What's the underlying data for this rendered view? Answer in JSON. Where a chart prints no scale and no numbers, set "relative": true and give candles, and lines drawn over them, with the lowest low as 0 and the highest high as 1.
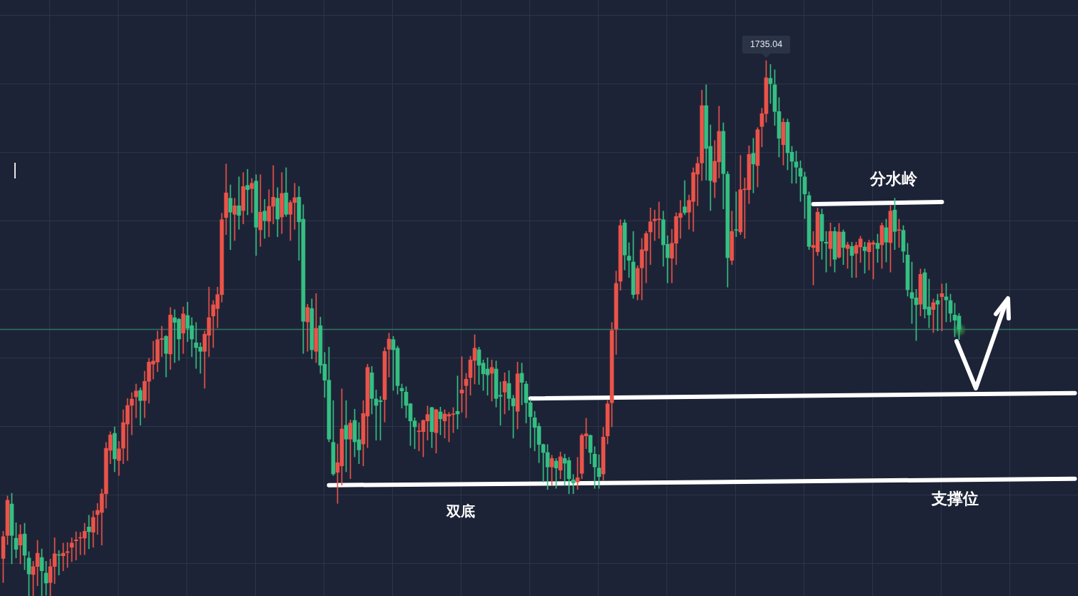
{
  "chart_data": {
    "type": "candlestick",
    "relative": true,
    "grid": true,
    "categories": [
      null,
      null,
      null,
      null,
      null,
      null,
      null,
      null,
      null,
      null,
      null,
      null,
      null,
      null,
      null,
      null,
      null,
      null,
      null,
      null,
      null,
      null,
      null,
      null,
      null,
      null,
      null,
      null,
      null,
      null,
      null,
      null,
      null,
      null,
      null,
      null,
      null,
      null,
      null,
      null,
      null,
      null,
      null,
      null,
      null,
      null,
      null,
      null,
      null,
      null,
      null,
      null,
      null,
      null,
      null,
      null,
      null,
      null,
      null,
      null,
      null,
      null,
      null,
      null,
      null,
      null,
      null,
      null,
      null,
      null,
      null,
      null,
      null,
      null,
      null,
      null,
      null,
      null,
      null,
      null,
      null,
      null,
      null,
      null,
      null,
      null,
      null,
      null,
      null,
      null,
      null,
      null,
      null,
      null,
      null,
      null,
      null,
      null,
      null,
      null,
      null,
      null,
      null,
      null,
      null,
      null,
      null,
      null,
      null,
      null,
      null,
      null,
      null,
      null,
      null,
      null,
      null,
      null,
      null,
      null,
      null,
      null,
      null,
      null,
      null,
      null,
      null,
      null,
      null,
      null,
      null,
      null,
      null,
      null,
      null,
      null,
      null,
      null,
      null,
      null,
      null,
      null,
      null,
      null,
      null,
      null,
      null,
      null,
      null,
      null,
      null,
      null,
      null,
      null,
      null,
      null,
      null,
      null,
      null,
      null,
      null,
      null,
      null,
      null,
      null,
      null,
      null,
      null,
      null,
      null,
      null,
      null,
      null,
      null,
      null,
      null,
      null,
      null,
      null,
      null,
      null,
      null,
      null,
      null,
      null,
      null,
      null,
      null,
      null,
      null,
      null,
      null,
      null,
      null,
      null,
      null,
      null,
      null,
      null,
      null,
      null,
      null,
      null,
      null,
      null,
      null,
      null,
      null,
      null,
      null,
      null,
      null,
      null,
      null,
      null,
      null,
      null,
      null,
      null,
      null,
      null,
      null,
      null,
      null,
      null,
      null,
      null,
      null,
      null,
      null,
      null,
      null,
      null,
      null,
      null,
      null,
      null,
      null,
      null,
      null,
      null,
      null,
      null,
      null,
      null,
      null,
      null,
      null,
      null,
      null,
      null
    ],
    "ohlc": [
      [
        0.07,
        0.121,
        0.025,
        0.111
      ],
      [
        0.113,
        0.187,
        0.096,
        0.179
      ],
      [
        0.172,
        0.192,
        0.06,
        0.113
      ],
      [
        0.108,
        0.137,
        0.071,
        0.087
      ],
      [
        0.095,
        0.133,
        0.06,
        0.115
      ],
      [
        0.116,
        0.136,
        0.049,
        0.076
      ],
      [
        0.071,
        0.083,
        0,
        0.041
      ],
      [
        0.04,
        0.065,
        0,
        0.055
      ],
      [
        0.055,
        0.104,
        0.019,
        0.08
      ],
      [
        0.072,
        0.088,
        0,
        0.047
      ],
      [
        0.043,
        0.065,
        0.001,
        0.024
      ],
      [
        0.025,
        0.069,
        0,
        0.055
      ],
      [
        0.055,
        0.109,
        0.023,
        0.079
      ],
      [
        0.077,
        0.085,
        0.039,
        0.076
      ],
      [
        0.075,
        0.099,
        0.047,
        0.08
      ],
      [
        0.081,
        0.1,
        0.053,
        0.083
      ],
      [
        0.091,
        0.109,
        0.064,
        0.099
      ],
      [
        0.103,
        0.12,
        0.067,
        0.105
      ],
      [
        0.108,
        0.119,
        0.077,
        0.109
      ],
      [
        0.108,
        0.136,
        0.077,
        0.121
      ],
      [
        0.129,
        0.151,
        0.088,
        0.12
      ],
      [
        0.119,
        0.159,
        0.091,
        0.147
      ],
      [
        0.152,
        0.173,
        0.115,
        0.16
      ],
      [
        0.156,
        0.2,
        0.095,
        0.191
      ],
      [
        0.191,
        0.287,
        0.164,
        0.276
      ],
      [
        0.272,
        0.307,
        0.247,
        0.301
      ],
      [
        0.304,
        0.316,
        0.232,
        0.256
      ],
      [
        0.253,
        0.289,
        0.225,
        0.275
      ],
      [
        0.276,
        0.348,
        0.247,
        0.324
      ],
      [
        0.321,
        0.369,
        0.253,
        0.356
      ],
      [
        0.356,
        0.38,
        0.301,
        0.368
      ],
      [
        0.372,
        0.396,
        0.333,
        0.383
      ],
      [
        0.384,
        0.389,
        0.319,
        0.365
      ],
      [
        0.365,
        0.42,
        0.333,
        0.401
      ],
      [
        0.401,
        0.444,
        0.36,
        0.437
      ],
      [
        0.433,
        0.476,
        0.405,
        0.439
      ],
      [
        0.437,
        0.495,
        0.419,
        0.479
      ],
      [
        0.479,
        0.504,
        0.447,
        0.481
      ],
      [
        0.485,
        0.487,
        0.409,
        0.453
      ],
      [
        0.452,
        0.539,
        0.423,
        0.525
      ],
      [
        0.52,
        0.535,
        0.436,
        0.511
      ],
      [
        0.517,
        0.519,
        0.44,
        0.48
      ],
      [
        0.491,
        0.54,
        0.453,
        0.527
      ],
      [
        0.524,
        0.549,
        0.475,
        0.5
      ],
      [
        0.505,
        0.52,
        0.447,
        0.48
      ],
      [
        0.473,
        0.511,
        0.425,
        0.464
      ],
      [
        0.465,
        0.473,
        0.416,
        0.457
      ],
      [
        0.457,
        0.495,
        0.388,
        0.489
      ],
      [
        0.487,
        0.577,
        0.447,
        0.52
      ],
      [
        0.523,
        0.552,
        0.464,
        0.544
      ],
      [
        0.537,
        0.577,
        0.501,
        0.563
      ],
      [
        0.563,
        0.715,
        0.549,
        0.703
      ],
      [
        0.707,
        0.807,
        0.675,
        0.753
      ],
      [
        0.743,
        0.768,
        0.647,
        0.717
      ],
      [
        0.713,
        0.743,
        0.664,
        0.729
      ],
      [
        0.729,
        0.783,
        0.685,
        0.711
      ],
      [
        0.72,
        0.791,
        0.695,
        0.765
      ],
      [
        0.767,
        0.797,
        0.712,
        0.759
      ],
      [
        0.761,
        0.78,
        0.716,
        0.771
      ],
      [
        0.775,
        0.787,
        0.636,
        0.689
      ],
      [
        0.684,
        0.787,
        0.653,
        0.717
      ],
      [
        0.719,
        0.741,
        0.668,
        0.701
      ],
      [
        0.7,
        0.759,
        0.671,
        0.728
      ],
      [
        0.728,
        0.804,
        0.695,
        0.745
      ],
      [
        0.743,
        0.763,
        0.671,
        0.704
      ],
      [
        0.708,
        0.791,
        0.677,
        0.752
      ],
      [
        0.753,
        0.8,
        0.709,
        0.713
      ],
      [
        0.713,
        0.739,
        0.664,
        0.735
      ],
      [
        0.735,
        0.771,
        0.685,
        0.744
      ],
      [
        0.745,
        0.765,
        0.627,
        0.699
      ],
      [
        0.704,
        0.731,
        0.453,
        0.513
      ],
      [
        0.512,
        0.545,
        0.457,
        0.539
      ],
      [
        0.537,
        0.555,
        0.443,
        0.46
      ],
      [
        0.457,
        0.565,
        0.436,
        0.5
      ],
      [
        0.505,
        0.521,
        0.416,
        0.431
      ],
      [
        0.433,
        0.455,
        0.371,
        0.403
      ],
      [
        0.403,
        0.465,
        0.288,
        0.293
      ],
      [
        0.287,
        0.365,
        0.225,
        0.228
      ],
      [
        0.231,
        0.284,
        0.173,
        0.249
      ],
      [
        0.243,
        0.387,
        0.207,
        0.312
      ],
      [
        0.319,
        0.365,
        0.232,
        0.293
      ],
      [
        0.293,
        0.329,
        0.219,
        0.323
      ],
      [
        0.328,
        0.349,
        0.26,
        0.288
      ],
      [
        0.292,
        0.324,
        0.247,
        0.273
      ],
      [
        0.284,
        0.365,
        0.243,
        0.341
      ],
      [
        0.336,
        0.433,
        0.277,
        0.427
      ],
      [
        0.417,
        0.429,
        0.34,
        0.369
      ],
      [
        0.368,
        0.385,
        0.291,
        0.356
      ],
      [
        0.365,
        0.373,
        0.291,
        0.363
      ],
      [
        0.367,
        0.464,
        0.325,
        0.457
      ],
      [
        0.461,
        0.491,
        0.409,
        0.48
      ],
      [
        0.479,
        0.485,
        0.384,
        0.46
      ],
      [
        0.463,
        0.467,
        0.377,
        0.393
      ],
      [
        0.388,
        0.396,
        0.351,
        0.383
      ],
      [
        0.381,
        0.391,
        0.333,
        0.356
      ],
      [
        0.359,
        0.36,
        0.281,
        0.327
      ],
      [
        0.327,
        0.333,
        0.275,
        0.316
      ],
      [
        0.307,
        0.323,
        0.271,
        0.308
      ],
      [
        0.307,
        0.329,
        0.26,
        0.328
      ],
      [
        0.327,
        0.355,
        0.291,
        0.339
      ],
      [
        0.352,
        0.353,
        0.277,
        0.307
      ],
      [
        0.305,
        0.349,
        0.267,
        0.348
      ],
      [
        0.344,
        0.353,
        0.301,
        0.331
      ],
      [
        0.327,
        0.348,
        0.295,
        0.34
      ],
      [
        0.336,
        0.343,
        0.288,
        0.339
      ],
      [
        0.339,
        0.352,
        0.305,
        0.34
      ],
      [
        0.345,
        0.411,
        0.312,
        0.34
      ],
      [
        0.379,
        0.447,
        0.343,
        0.385
      ],
      [
        0.393,
        0.416,
        0.333,
        0.405
      ],
      [
        0.408,
        0.448,
        0.375,
        0.441
      ],
      [
        0.44,
        0.488,
        0.396,
        0.463
      ],
      [
        0.46,
        0.465,
        0.395,
        0.431
      ],
      [
        0.435,
        0.441,
        0.384,
        0.415
      ],
      [
        0.424,
        0.445,
        0.375,
        0.413
      ],
      [
        0.416,
        0.441,
        0.364,
        0.427
      ],
      [
        0.424,
        0.439,
        0.353,
        0.369
      ],
      [
        0.375,
        0.4,
        0.319,
        0.373
      ],
      [
        0.381,
        0.417,
        0.34,
        0.401
      ],
      [
        0.397,
        0.421,
        0.347,
        0.369
      ],
      [
        0.369,
        0.375,
        0.295,
        0.355
      ],
      [
        0.345,
        0.437,
        0.312,
        0.415
      ],
      [
        0.416,
        0.435,
        0.357,
        0.399
      ],
      [
        0.396,
        0.401,
        0.323,
        0.361
      ],
      [
        0.361,
        0.367,
        0.277,
        0.335
      ],
      [
        0.333,
        0.345,
        0.271,
        0.315
      ],
      [
        0.317,
        0.323,
        0.249,
        0.283
      ],
      [
        0.283,
        0.284,
        0.213,
        0.268
      ],
      [
        0.268,
        0.283,
        0.199,
        0.241
      ],
      [
        0.241,
        0.263,
        0.207,
        0.257
      ],
      [
        0.252,
        0.257,
        0.201,
        0.239
      ],
      [
        0.235,
        0.269,
        0.219,
        0.26
      ],
      [
        0.257,
        0.265,
        0.207,
        0.248
      ],
      [
        0.253,
        0.259,
        0.191,
        0.219
      ],
      [
        0.217,
        0.227,
        0.191,
        0.211
      ],
      [
        0.213,
        0.259,
        0.199,
        0.221
      ],
      [
        0.229,
        0.303,
        0.219,
        0.3
      ],
      [
        0.299,
        0.332,
        0.275,
        0.303
      ],
      [
        0.3,
        0.301,
        0.247,
        0.268
      ],
      [
        0.265,
        0.279,
        0.201,
        0.241
      ],
      [
        0.239,
        0.264,
        0.201,
        0.223
      ],
      [
        0.228,
        0.315,
        0.216,
        0.297
      ],
      [
        0.299,
        0.365,
        0.284,
        0.359
      ],
      [
        0.361,
        0.511,
        0.316,
        0.496
      ],
      [
        0.499,
        0.607,
        0.451,
        0.584
      ],
      [
        0.588,
        0.703,
        0.571,
        0.692
      ],
      [
        0.697,
        0.703,
        0.609,
        0.637
      ],
      [
        0.635,
        0.66,
        0.595,
        0.627
      ],
      [
        0.624,
        0.681,
        0.556,
        0.563
      ],
      [
        0.564,
        0.617,
        0.553,
        0.612
      ],
      [
        0.613,
        0.668,
        0.553,
        0.647
      ],
      [
        0.645,
        0.681,
        0.585,
        0.677
      ],
      [
        0.68,
        0.725,
        0.619,
        0.699
      ],
      [
        0.701,
        0.721,
        0.664,
        0.704
      ],
      [
        0.703,
        0.736,
        0.668,
        0.704
      ],
      [
        0.703,
        0.719,
        0.616,
        0.656
      ],
      [
        0.657,
        0.673,
        0.585,
        0.632
      ],
      [
        0.631,
        0.685,
        0.585,
        0.659
      ],
      [
        0.659,
        0.716,
        0.619,
        0.709
      ],
      [
        0.707,
        0.739,
        0.668,
        0.715
      ],
      [
        0.727,
        0.776,
        0.712,
        0.716
      ],
      [
        0.717,
        0.749,
        0.685,
        0.739
      ],
      [
        0.737,
        0.8,
        0.681,
        0.791
      ],
      [
        0.788,
        0.82,
        0.729,
        0.808
      ],
      [
        0.809,
        0.945,
        0.776,
        0.916
      ],
      [
        0.916,
        0.955,
        0.777,
        0.836
      ],
      [
        0.84,
        0.88,
        0.72,
        0.776
      ],
      [
        0.773,
        0.851,
        0.744,
        0.812
      ],
      [
        0.811,
        0.915,
        0.781,
        0.868
      ],
      [
        0.868,
        0.884,
        0.723,
        0.789
      ],
      [
        0.788,
        0.793,
        0.577,
        0.632
      ],
      [
        0.627,
        0.719,
        0.619,
        0.681
      ],
      [
        0.684,
        0.755,
        0.671,
        0.683
      ],
      [
        0.68,
        0.823,
        0.675,
        0.759
      ],
      [
        0.759,
        0.781,
        0.668,
        0.76
      ],
      [
        0.759,
        0.841,
        0.733,
        0.825
      ],
      [
        0.827,
        0.855,
        0.753,
        0.807
      ],
      [
        0.804,
        0.875,
        0.764,
        0.871
      ],
      [
        0.877,
        0.911,
        0.839,
        0.901
      ],
      [
        0.901,
        1,
        0.885,
        0.968
      ],
      [
        0.967,
        0.993,
        0.92,
        0.957
      ],
      [
        0.955,
        0.983,
        0.879,
        0.905
      ],
      [
        0.905,
        0.931,
        0.82,
        0.855
      ],
      [
        0.843,
        0.892,
        0.805,
        0.885
      ],
      [
        0.885,
        0.891,
        0.796,
        0.828
      ],
      [
        0.829,
        0.84,
        0.771,
        0.812
      ],
      [
        0.811,
        0.831,
        0.771,
        0.801
      ],
      [
        0.799,
        0.813,
        0.737,
        0.784
      ],
      [
        0.783,
        0.792,
        0.705,
        0.751
      ],
      [
        0.748,
        0.755,
        0.647,
        0.653
      ],
      [
        0.651,
        0.681,
        0.581,
        0.655
      ],
      [
        0.643,
        0.725,
        0.636,
        0.717
      ],
      [
        0.713,
        0.723,
        0.629,
        0.663
      ],
      [
        0.661,
        0.681,
        0.605,
        0.659
      ],
      [
        0.649,
        0.697,
        0.616,
        0.681
      ],
      [
        0.681,
        0.689,
        0.605,
        0.629
      ],
      [
        0.633,
        0.696,
        0.631,
        0.68
      ],
      [
        0.68,
        0.684,
        0.619,
        0.651
      ],
      [
        0.649,
        0.661,
        0.612,
        0.656
      ],
      [
        0.653,
        0.661,
        0.595,
        0.636
      ],
      [
        0.64,
        0.661,
        0.595,
        0.655
      ],
      [
        0.652,
        0.672,
        0.623,
        0.667
      ],
      [
        0.652,
        0.661,
        0.603,
        0.645
      ],
      [
        0.643,
        0.665,
        0.609,
        0.66
      ],
      [
        0.657,
        0.664,
        0.592,
        0.66
      ],
      [
        0.659,
        0.676,
        0.623,
        0.649
      ],
      [
        0.656,
        0.697,
        0.612,
        0.692
      ],
      [
        0.688,
        0.704,
        0.624,
        0.661
      ],
      [
        0.66,
        0.729,
        0.605,
        0.719
      ],
      [
        0.721,
        0.743,
        0.647,
        0.681
      ],
      [
        0.683,
        0.704,
        0.651,
        0.684
      ],
      [
        0.683,
        0.692,
        0.623,
        0.644
      ],
      [
        0.637,
        0.659,
        0.56,
        0.572
      ],
      [
        0.567,
        0.624,
        0.509,
        0.556
      ],
      [
        0.557,
        0.573,
        0.477,
        0.544
      ],
      [
        0.545,
        0.611,
        0.523,
        0.601
      ],
      [
        0.604,
        0.611,
        0.519,
        0.536
      ],
      [
        0.54,
        0.592,
        0.501,
        0.525
      ],
      [
        0.535,
        0.555,
        0.492,
        0.548
      ],
      [
        0.552,
        0.564,
        0.495,
        0.545
      ],
      [
        0.559,
        0.583,
        0.495,
        0.565
      ],
      [
        0.559,
        0.584,
        0.512,
        0.553
      ],
      [
        0.552,
        0.564,
        0.512,
        0.528
      ],
      [
        0.525,
        0.547,
        0.484,
        0.515
      ],
      [
        0.523,
        0.528,
        0.479,
        0.498
      ],
      null,
      null,
      null,
      null,
      null,
      null,
      null,
      null,
      null,
      null,
      null,
      null,
      null,
      null,
      null,
      null,
      null,
      null,
      null,
      null,
      null,
      null,
      null,
      null,
      null,
      null,
      null
    ],
    "colors": [
      "#ea5349",
      "#ea5349",
      "#34bf83",
      "#34bf83",
      "#ea5349",
      "#34bf83",
      "#34bf83",
      "#ea5349",
      "#ea5349",
      "#34bf83",
      "#34bf83",
      "#ea5349",
      "#ea5349",
      "#34bf83",
      "#ea5349",
      "#ea5349",
      "#ea5349",
      "#ea5349",
      "#ea5349",
      "#ea5349",
      "#34bf83",
      "#ea5349",
      "#ea5349",
      "#ea5349",
      "#ea5349",
      "#ea5349",
      "#34bf83",
      "#ea5349",
      "#ea5349",
      "#ea5349",
      "#ea5349",
      "#ea5349",
      "#34bf83",
      "#ea5349",
      "#ea5349",
      "#ea5349",
      "#ea5349",
      "#ea5349",
      "#34bf83",
      "#ea5349",
      "#34bf83",
      "#34bf83",
      "#ea5349",
      "#34bf83",
      "#34bf83",
      "#34bf83",
      "#34bf83",
      "#ea5349",
      "#ea5349",
      "#ea5349",
      "#ea5349",
      "#ea5349",
      "#ea5349",
      "#34bf83",
      "#ea5349",
      "#34bf83",
      "#ea5349",
      "#34bf83",
      "#ea5349",
      "#34bf83",
      "#ea5349",
      "#34bf83",
      "#ea5349",
      "#ea5349",
      "#34bf83",
      "#ea5349",
      "#34bf83",
      "#ea5349",
      "#ea5349",
      "#34bf83",
      "#34bf83",
      "#ea5349",
      "#34bf83",
      "#ea5349",
      "#34bf83",
      "#34bf83",
      "#34bf83",
      "#34bf83",
      "#ea5349",
      "#ea5349",
      "#34bf83",
      "#ea5349",
      "#34bf83",
      "#34bf83",
      "#ea5349",
      "#ea5349",
      "#34bf83",
      "#34bf83",
      "#34bf83",
      "#ea5349",
      "#ea5349",
      "#34bf83",
      "#34bf83",
      "#34bf83",
      "#34bf83",
      "#34bf83",
      "#34bf83",
      "#ea5349",
      "#ea5349",
      "#ea5349",
      "#34bf83",
      "#ea5349",
      "#34bf83",
      "#ea5349",
      "#ea5349",
      "#ea5349",
      "#34bf83",
      "#ea5349",
      "#ea5349",
      "#ea5349",
      "#ea5349",
      "#34bf83",
      "#34bf83",
      "#34bf83",
      "#ea5349",
      "#34bf83",
      "#34bf83",
      "#ea5349",
      "#34bf83",
      "#34bf83",
      "#ea5349",
      "#34bf83",
      "#34bf83",
      "#34bf83",
      "#34bf83",
      "#34bf83",
      "#34bf83",
      "#34bf83",
      "#ea5349",
      "#34bf83",
      "#ea5349",
      "#34bf83",
      "#34bf83",
      "#34bf83",
      "#ea5349",
      "#ea5349",
      "#ea5349",
      "#34bf83",
      "#34bf83",
      "#34bf83",
      "#ea5349",
      "#ea5349",
      "#ea5349",
      "#ea5349",
      "#ea5349",
      "#34bf83",
      "#34bf83",
      "#34bf83",
      "#ea5349",
      "#ea5349",
      "#ea5349",
      "#ea5349",
      "#ea5349",
      "#ea5349",
      "#34bf83",
      "#34bf83",
      "#ea5349",
      "#ea5349",
      "#ea5349",
      "#34bf83",
      "#ea5349",
      "#ea5349",
      "#ea5349",
      "#ea5349",
      "#34bf83",
      "#34bf83",
      "#ea5349",
      "#ea5349",
      "#34bf83",
      "#34bf83",
      "#ea5349",
      "#34bf83",
      "#ea5349",
      "#ea5349",
      "#ea5349",
      "#34bf83",
      "#ea5349",
      "#ea5349",
      "#ea5349",
      "#34bf83",
      "#34bf83",
      "#34bf83",
      "#ea5349",
      "#34bf83",
      "#34bf83",
      "#34bf83",
      "#34bf83",
      "#34bf83",
      "#34bf83",
      "#ea5349",
      "#ea5349",
      "#34bf83",
      "#34bf83",
      "#ea5349",
      "#34bf83",
      "#ea5349",
      "#34bf83",
      "#ea5349",
      "#34bf83",
      "#ea5349",
      "#ea5349",
      "#34bf83",
      "#ea5349",
      "#ea5349",
      "#34bf83",
      "#ea5349",
      "#34bf83",
      "#ea5349",
      "#34bf83",
      "#ea5349",
      "#34bf83",
      "#34bf83",
      "#34bf83",
      "#34bf83",
      "#ea5349",
      "#34bf83",
      "#34bf83",
      "#ea5349",
      "#34bf83",
      "#ea5349",
      "#34bf83",
      "#34bf83",
      "#34bf83",
      "#34bf83",
      null,
      null,
      null,
      null,
      null,
      null,
      null,
      null,
      null,
      null,
      null,
      null,
      null,
      null,
      null,
      null,
      null,
      null,
      null,
      null,
      null,
      null,
      null,
      null,
      null,
      null,
      null
    ],
    "series": [
      {
        "type": "line",
        "name": "支撑位",
        "color": "#ffffff",
        "values": [
          null,
          null,
          null,
          null,
          null,
          null,
          null,
          null,
          null,
          null,
          null,
          null,
          null,
          null,
          null,
          null,
          null,
          null,
          null,
          null,
          null,
          null,
          null,
          null,
          null,
          null,
          null,
          null,
          null,
          null,
          null,
          null,
          null,
          null,
          null,
          null,
          null,
          null,
          null,
          null,
          null,
          null,
          null,
          null,
          null,
          null,
          null,
          null,
          null,
          null,
          null,
          null,
          null,
          null,
          null,
          null,
          null,
          null,
          null,
          null,
          null,
          null,
          null,
          null,
          null,
          null,
          null,
          null,
          null,
          null,
          null,
          null,
          null,
          null,
          null,
          null,
          0.207,
          null,
          null,
          null,
          null,
          null,
          null,
          null,
          null,
          null,
          null,
          null,
          null,
          null,
          null,
          null,
          null,
          null,
          null,
          null,
          null,
          null,
          null,
          null,
          null,
          null,
          null,
          null,
          null,
          null,
          null,
          null,
          null,
          null,
          null,
          null,
          null,
          null,
          null,
          null,
          null,
          null,
          null,
          null,
          null,
          null,
          null,
          null,
          null,
          null,
          null,
          null,
          null,
          null,
          null,
          null,
          null,
          null,
          null,
          null,
          null,
          null,
          null,
          null,
          0.211,
          null,
          null,
          null,
          null,
          null,
          null,
          null,
          null,
          null,
          null,
          null,
          null,
          null,
          null,
          null,
          null,
          null,
          null,
          null,
          null,
          null,
          null,
          null,
          null,
          null,
          null,
          null,
          null,
          null,
          null,
          null,
          null,
          null,
          null,
          null,
          null,
          null,
          null,
          null,
          null,
          null,
          null,
          null,
          null,
          null,
          null,
          null,
          null,
          null,
          null,
          null,
          null,
          null,
          null,
          null,
          null,
          null,
          null,
          null,
          null,
          null,
          null,
          null,
          null,
          null,
          null,
          null,
          null,
          null,
          null,
          null,
          null,
          null,
          null,
          null,
          null,
          null,
          null,
          null,
          null,
          null,
          null,
          null,
          null,
          null,
          null,
          null,
          null,
          null,
          null,
          null,
          null,
          null,
          null,
          null,
          null,
          null,
          null,
          null,
          null,
          null,
          null,
          null,
          null,
          null,
          null,
          null,
          null,
          null,
          0.219
        ]
      },
      {
        "type": "line",
        "color": "#ffffff",
        "values": [
          null,
          null,
          null,
          null,
          null,
          null,
          null,
          null,
          null,
          null,
          null,
          null,
          null,
          null,
          null,
          null,
          null,
          null,
          null,
          null,
          null,
          null,
          null,
          null,
          null,
          null,
          null,
          null,
          null,
          null,
          null,
          null,
          null,
          null,
          null,
          null,
          null,
          null,
          null,
          null,
          null,
          null,
          null,
          null,
          null,
          null,
          null,
          null,
          null,
          null,
          null,
          null,
          null,
          null,
          null,
          null,
          null,
          null,
          null,
          null,
          null,
          null,
          null,
          null,
          null,
          null,
          null,
          null,
          null,
          null,
          null,
          null,
          null,
          null,
          null,
          null,
          null,
          null,
          null,
          null,
          null,
          null,
          null,
          null,
          null,
          null,
          null,
          null,
          null,
          null,
          null,
          null,
          null,
          null,
          null,
          null,
          null,
          null,
          null,
          null,
          null,
          null,
          null,
          null,
          null,
          null,
          null,
          null,
          null,
          null,
          null,
          null,
          null,
          null,
          null,
          null,
          null,
          null,
          null,
          null,
          null,
          null,
          null,
          0.369,
          null,
          null,
          null,
          null,
          null,
          null,
          null,
          null,
          null,
          null,
          null,
          null,
          null,
          null,
          null,
          null,
          null,
          null,
          null,
          null,
          null,
          null,
          null,
          null,
          null,
          null,
          null,
          null,
          null,
          null,
          null,
          null,
          null,
          null,
          null,
          null,
          null,
          null,
          null,
          null,
          null,
          null,
          null,
          null,
          null,
          null,
          null,
          null,
          null,
          null,
          null,
          null,
          null,
          null,
          null,
          null,
          null,
          null,
          null,
          null,
          null,
          null,
          null,
          null,
          null,
          null,
          null,
          null,
          null,
          null,
          null,
          null,
          null,
          null,
          null,
          null,
          null,
          null,
          null,
          null,
          null,
          null,
          null,
          null,
          null,
          null,
          null,
          null,
          null,
          null,
          null,
          null,
          null,
          null,
          null,
          null,
          null,
          null,
          null,
          null,
          null,
          null,
          null,
          null,
          null,
          null,
          null,
          null,
          null,
          null,
          null,
          null,
          null,
          null,
          null,
          null,
          null,
          null,
          null,
          null,
          null,
          null,
          null,
          null,
          null,
          null,
          0.379
        ]
      },
      {
        "type": "line",
        "name": "分水岭",
        "color": "#ffffff",
        "values": [
          null,
          null,
          null,
          null,
          null,
          null,
          null,
          null,
          null,
          null,
          null,
          null,
          null,
          null,
          null,
          null,
          null,
          null,
          null,
          null,
          null,
          null,
          null,
          null,
          null,
          null,
          null,
          null,
          null,
          null,
          null,
          null,
          null,
          null,
          null,
          null,
          null,
          null,
          null,
          null,
          null,
          null,
          null,
          null,
          null,
          null,
          null,
          null,
          null,
          null,
          null,
          null,
          null,
          null,
          null,
          null,
          null,
          null,
          null,
          null,
          null,
          null,
          null,
          null,
          null,
          null,
          null,
          null,
          null,
          null,
          null,
          null,
          null,
          null,
          null,
          null,
          null,
          null,
          null,
          null,
          null,
          null,
          null,
          null,
          null,
          null,
          null,
          null,
          null,
          null,
          null,
          null,
          null,
          null,
          null,
          null,
          null,
          null,
          null,
          null,
          null,
          null,
          null,
          null,
          null,
          null,
          null,
          null,
          null,
          null,
          null,
          null,
          null,
          null,
          null,
          null,
          null,
          null,
          null,
          null,
          null,
          null,
          null,
          null,
          null,
          null,
          null,
          null,
          null,
          null,
          null,
          null,
          null,
          null,
          null,
          null,
          null,
          null,
          null,
          null,
          null,
          null,
          null,
          null,
          null,
          null,
          null,
          null,
          null,
          null,
          null,
          null,
          null,
          null,
          null,
          null,
          null,
          null,
          null,
          null,
          null,
          null,
          null,
          null,
          null,
          null,
          null,
          null,
          null,
          null,
          null,
          null,
          null,
          null,
          null,
          null,
          null,
          null,
          null,
          null,
          null,
          null,
          null,
          null,
          null,
          null,
          null,
          null,
          null,
          0.732,
          null,
          null,
          null,
          null,
          null,
          null,
          null,
          null,
          null,
          null,
          null,
          null,
          null,
          null,
          null,
          null,
          null,
          null,
          null,
          null,
          null,
          null,
          null,
          null,
          null,
          null,
          null,
          null,
          null,
          0.736,
          null,
          null,
          null,
          null,
          null,
          null,
          null,
          null,
          null,
          null,
          null,
          null,
          null,
          null,
          null,
          null,
          null,
          null,
          null,
          null,
          null,
          null,
          null,
          null,
          null,
          null,
          null,
          null,
          null,
          null,
          null
        ]
      }
    ],
    "ref_lines": [
      {
        "axis": "y",
        "value": 0.498,
        "color": "#2f7566"
      }
    ],
    "annotations": [
      {
        "text": "1735.04",
        "y": 1
      },
      "双底"
    ]
  }
}
